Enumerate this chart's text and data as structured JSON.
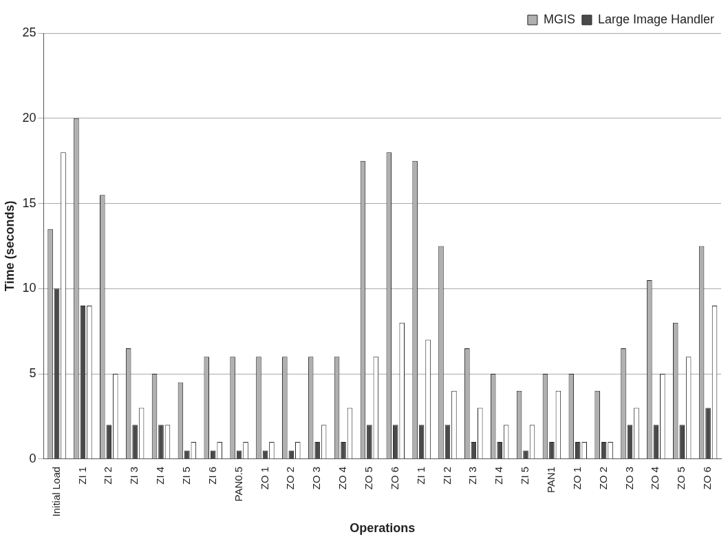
{
  "chart_data": {
    "type": "bar",
    "xlabel": "Operations",
    "ylabel": "Time (seconds)",
    "categories": [
      "Initial Load",
      "ZI 1",
      "ZI 2",
      "ZI 3",
      "ZI 4",
      "ZI 5",
      "ZI 6",
      "PAN0.5",
      "ZO 1",
      "ZO 2",
      "ZO 3",
      "ZO 4",
      "ZO 5",
      "ZO 6",
      "ZI 1",
      "ZI 2",
      "ZI 3",
      "ZI 4",
      "ZI 5",
      "PAN1",
      "ZO 1",
      "ZO 2",
      "ZO 3",
      "ZO 4",
      "ZO 5",
      "ZO 6"
    ],
    "series": [
      {
        "name": "MGIS",
        "color": "#b0b0b0",
        "values": [
          13.5,
          20,
          15.5,
          6.5,
          5,
          4.5,
          6,
          6,
          6,
          6,
          6,
          6,
          17.5,
          18,
          17.5,
          12.5,
          6.5,
          5,
          4,
          5,
          5,
          4,
          6.5,
          10.5,
          8,
          12.5
        ]
      },
      {
        "name": "Large Image Handler",
        "color": "#4a4a4a",
        "values": [
          10,
          9,
          2,
          2,
          2,
          0.5,
          0.5,
          0.5,
          0.5,
          0.5,
          1,
          1,
          2,
          2,
          2,
          2,
          1,
          1,
          0.5,
          1,
          1,
          1,
          2,
          2,
          2,
          3
        ]
      },
      {
        "color": "#ffffff",
        "values": [
          18,
          9,
          5,
          3,
          2,
          1,
          1,
          1,
          1,
          1,
          2,
          3,
          6,
          8,
          7,
          4,
          3,
          2,
          2,
          4,
          1,
          1,
          3,
          5,
          6,
          9
        ]
      }
    ],
    "ylim": [
      0,
      25
    ],
    "yticks": [
      0,
      5,
      10,
      15,
      20,
      25
    ],
    "grid": "y",
    "legend": "top right"
  }
}
